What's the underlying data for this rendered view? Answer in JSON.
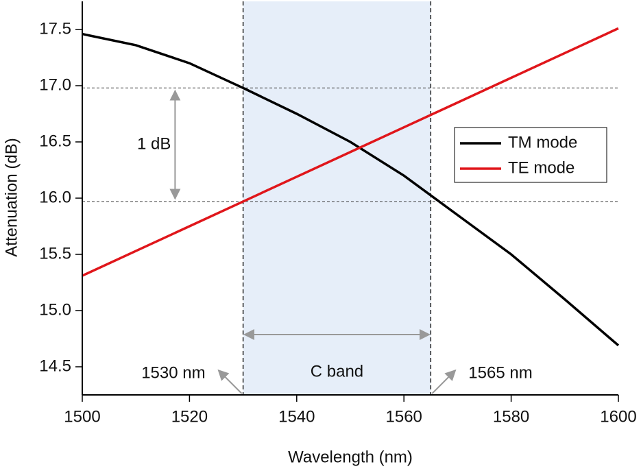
{
  "chart_data": {
    "type": "line",
    "xlabel": "Wavelength (nm)",
    "ylabel": "Attenuation (dB)",
    "x": [
      1500,
      1510,
      1520,
      1530,
      1540,
      1550,
      1560,
      1570,
      1580,
      1590,
      1600
    ],
    "series": [
      {
        "name": "TM mode",
        "color": "#000000",
        "values": [
          17.46,
          17.36,
          17.2,
          16.98,
          16.75,
          16.5,
          16.2,
          15.85,
          15.5,
          15.1,
          14.69
        ]
      },
      {
        "name": "TE mode",
        "color": "#e0161b",
        "values": [
          15.31,
          15.53,
          15.75,
          15.97,
          16.19,
          16.41,
          16.63,
          16.85,
          17.07,
          17.29,
          17.51
        ]
      }
    ],
    "xlim": [
      1500,
      1600
    ],
    "xticks": [
      1500,
      1520,
      1540,
      1560,
      1580,
      1600
    ],
    "ylim": [
      14.25,
      17.75
    ],
    "yticks": [
      14.5,
      {
        "value": 15,
        "label": "15.0"
      },
      15.5,
      {
        "value": 16,
        "label": "16.0"
      },
      16.5,
      {
        "value": 17,
        "label": "17.0"
      },
      17.5
    ],
    "band": {
      "x": [
        1530,
        1565
      ],
      "label": "C band",
      "color": "#e6eef9",
      "left_label": "1530 nm",
      "right_label": "1565 nm"
    },
    "hlines": [
      16.98,
      15.97
    ],
    "hline_label": "1 dB",
    "legend": "right"
  }
}
